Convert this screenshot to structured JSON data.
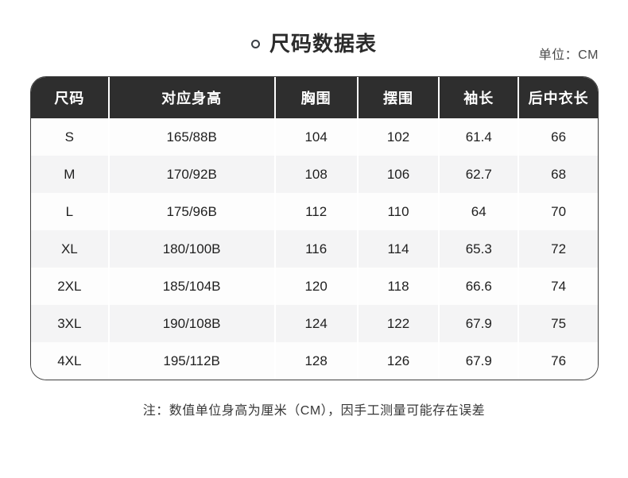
{
  "header": {
    "title": "尺码数据表",
    "unit_label": "单位：CM"
  },
  "chart_data": {
    "type": "table",
    "title": "尺码数据表",
    "unit": "CM",
    "columns": [
      "尺码",
      "对应身高",
      "胸围",
      "摆围",
      "袖长",
      "后中衣长"
    ],
    "rows": [
      [
        "S",
        "165/88B",
        "104",
        "102",
        "61.4",
        "66"
      ],
      [
        "M",
        "170/92B",
        "108",
        "106",
        "62.7",
        "68"
      ],
      [
        "L",
        "175/96B",
        "112",
        "110",
        "64",
        "70"
      ],
      [
        "XL",
        "180/100B",
        "116",
        "114",
        "65.3",
        "72"
      ],
      [
        "2XL",
        "185/104B",
        "120",
        "118",
        "66.6",
        "74"
      ],
      [
        "3XL",
        "190/108B",
        "124",
        "122",
        "67.9",
        "75"
      ],
      [
        "4XL",
        "195/112B",
        "128",
        "126",
        "67.9",
        "76"
      ]
    ]
  },
  "footnote": "注：数值单位身高为厘米（CM），因手工测量可能存在误差",
  "colors": {
    "header_bg": "#2e2e2e",
    "header_text": "#ffffff",
    "row_bg": "#fdfdfd",
    "row_alt_bg": "#f4f4f5",
    "body_text": "#1f1f1f",
    "table_border": "#3f3f3f",
    "title_text": "#2b2b2b",
    "unit_text": "#4a4a4a"
  }
}
